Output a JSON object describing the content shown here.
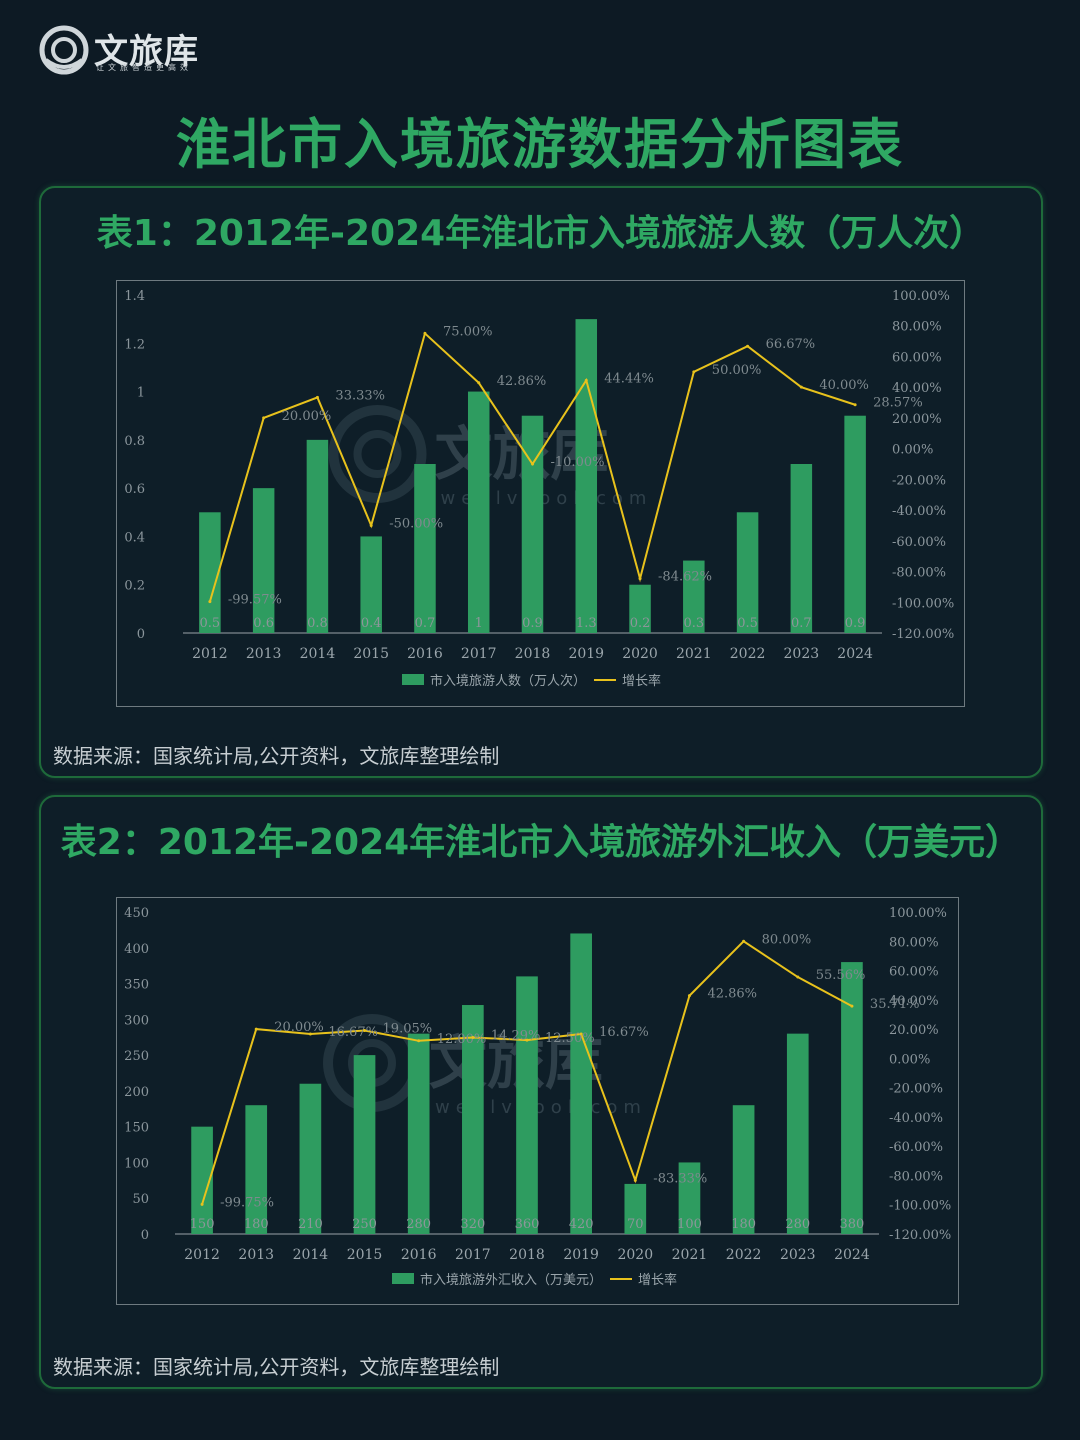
{
  "brand": {
    "name": "文旅库",
    "slogan": "让文旅智造更高效",
    "watermark_name": "文旅库",
    "watermark_url": "wenlvcool.com"
  },
  "page_title": "淮北市入境旅游数据分析图表",
  "source_note": "数据来源：国家统计局,公开资料，文旅库整理绘制",
  "colors": {
    "title_green": "#2fa863",
    "bar_green": "#2e9c60",
    "line_yellow": "#e8c21c",
    "background": "#0d1a24"
  },
  "chart_data": [
    {
      "type": "bar",
      "title": "表1：2012年-2024年淮北市入境旅游人数（万人次）",
      "categories": [
        "2012",
        "2013",
        "2014",
        "2015",
        "2016",
        "2017",
        "2018",
        "2019",
        "2020",
        "2021",
        "2022",
        "2023",
        "2024"
      ],
      "series": [
        {
          "name": "市入境旅游人数（万人次）",
          "type": "bar",
          "axis": "left",
          "values": [
            0.5,
            0.6,
            0.8,
            0.4,
            0.7,
            1,
            0.9,
            1.3,
            0.2,
            0.3,
            0.5,
            0.7,
            0.9
          ],
          "value_labels": [
            "0.5",
            "0.6",
            "0.8",
            "0.4",
            "0.7",
            "1",
            "0.9",
            "1.3",
            "0.2",
            "0.3",
            "0.5",
            "0.7",
            "0.9"
          ]
        },
        {
          "name": "增长率",
          "type": "line",
          "axis": "right",
          "values": [
            -99.57,
            20.0,
            33.33,
            -50.0,
            75.0,
            42.86,
            -10.0,
            44.44,
            -84.62,
            50.0,
            66.67,
            40.0,
            28.57
          ],
          "value_labels": [
            "-99.57%",
            "20.00%",
            "33.33%",
            "-50.00%",
            "75.00%",
            "42.86%",
            "-10.00%",
            "44.44%",
            "-84.62%",
            "50.00%",
            "66.67%",
            "40.00%",
            "28.57%"
          ]
        }
      ],
      "y_left": {
        "min": 0,
        "max": 1.4,
        "ticks": [
          "0",
          "0.2",
          "0.4",
          "0.6",
          "0.8",
          "1",
          "1.2",
          "1.4"
        ]
      },
      "y_right": {
        "min": -120,
        "max": 100,
        "ticks": [
          "-120.00%",
          "-100.00%",
          "-80.00%",
          "-60.00%",
          "-40.00%",
          "-20.00%",
          "0.00%",
          "20.00%",
          "40.00%",
          "60.00%",
          "80.00%",
          "100.00%"
        ]
      },
      "legend": [
        {
          "label": "市入境旅游人数（万人次）",
          "kind": "bar"
        },
        {
          "label": "增长率",
          "kind": "line"
        }
      ],
      "legend_position": "bottom"
    },
    {
      "type": "bar",
      "title": "表2：2012年-2024年淮北市入境旅游外汇收入（万美元）",
      "categories": [
        "2012",
        "2013",
        "2014",
        "2015",
        "2016",
        "2017",
        "2018",
        "2019",
        "2020",
        "2021",
        "2022",
        "2023",
        "2024"
      ],
      "series": [
        {
          "name": "市入境旅游外汇收入（万美元）",
          "type": "bar",
          "axis": "left",
          "values": [
            150,
            180,
            210,
            250,
            280,
            320,
            360,
            420,
            70,
            100,
            180,
            280,
            380
          ],
          "value_labels": [
            "150",
            "180",
            "210",
            "250",
            "280",
            "320",
            "360",
            "420",
            "70",
            "100",
            "180",
            "280",
            "380"
          ]
        },
        {
          "name": "增长率",
          "type": "line",
          "axis": "right",
          "values": [
            -99.75,
            20.0,
            16.67,
            19.05,
            12.0,
            14.29,
            12.5,
            16.67,
            -83.33,
            42.86,
            80.0,
            55.56,
            35.71
          ],
          "value_labels": [
            "-99.75%",
            "20.00%",
            "16.67%",
            "19.05%",
            "12.00%",
            "14.29%",
            "12.50%",
            "16.67%",
            "-83.33%",
            "42.86%",
            "80.00%",
            "55.56%",
            "35.71%"
          ]
        }
      ],
      "y_left": {
        "min": 0,
        "max": 450,
        "ticks": [
          "0",
          "50",
          "100",
          "150",
          "200",
          "250",
          "300",
          "350",
          "400",
          "450"
        ]
      },
      "y_right": {
        "min": -120,
        "max": 100,
        "ticks": [
          "-120.00%",
          "-100.00%",
          "-80.00%",
          "-60.00%",
          "-40.00%",
          "-20.00%",
          "0.00%",
          "20.00%",
          "40.00%",
          "60.00%",
          "80.00%",
          "100.00%"
        ]
      },
      "legend": [
        {
          "label": "市入境旅游外汇收入（万美元）",
          "kind": "bar"
        },
        {
          "label": "增长率",
          "kind": "line"
        }
      ],
      "legend_position": "bottom"
    }
  ]
}
